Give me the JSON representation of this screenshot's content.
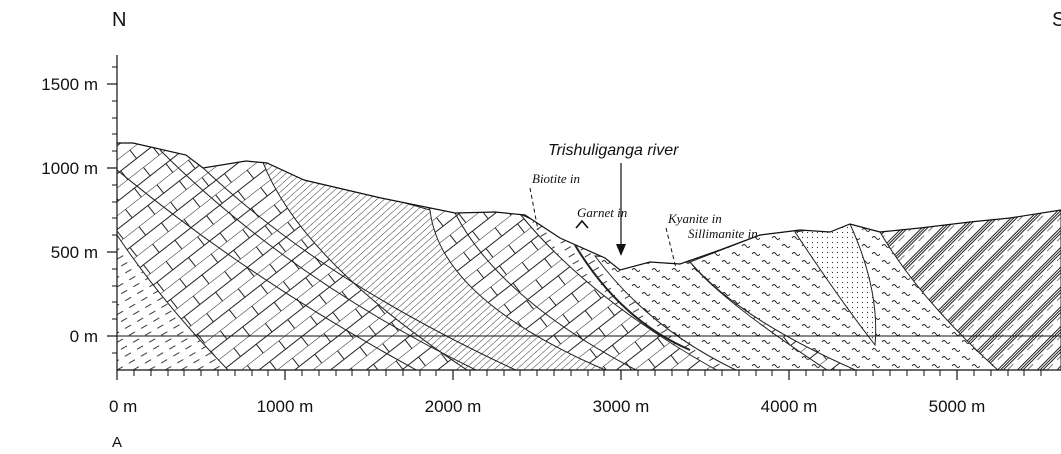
{
  "compass": {
    "left": "N",
    "right": "S"
  },
  "panel_label": "A",
  "axes": {
    "y_ticks": [
      "1500 m",
      "1000 m",
      "500 m",
      "0 m"
    ],
    "x_ticks": [
      "0 m",
      "1000 m",
      "2000 m",
      "3000 m",
      "4000 m",
      "5000 m"
    ]
  },
  "annotations": {
    "river": "Trishuliganga river",
    "biotite": "Biotite in",
    "garnet": "Garnet in",
    "kyanite": "Kyanite in",
    "sillimanite": "Sillimanite in"
  },
  "icons": {
    "river_marker": "down-arrow-icon",
    "fault_marker": "thrust-arrow-icon"
  }
}
